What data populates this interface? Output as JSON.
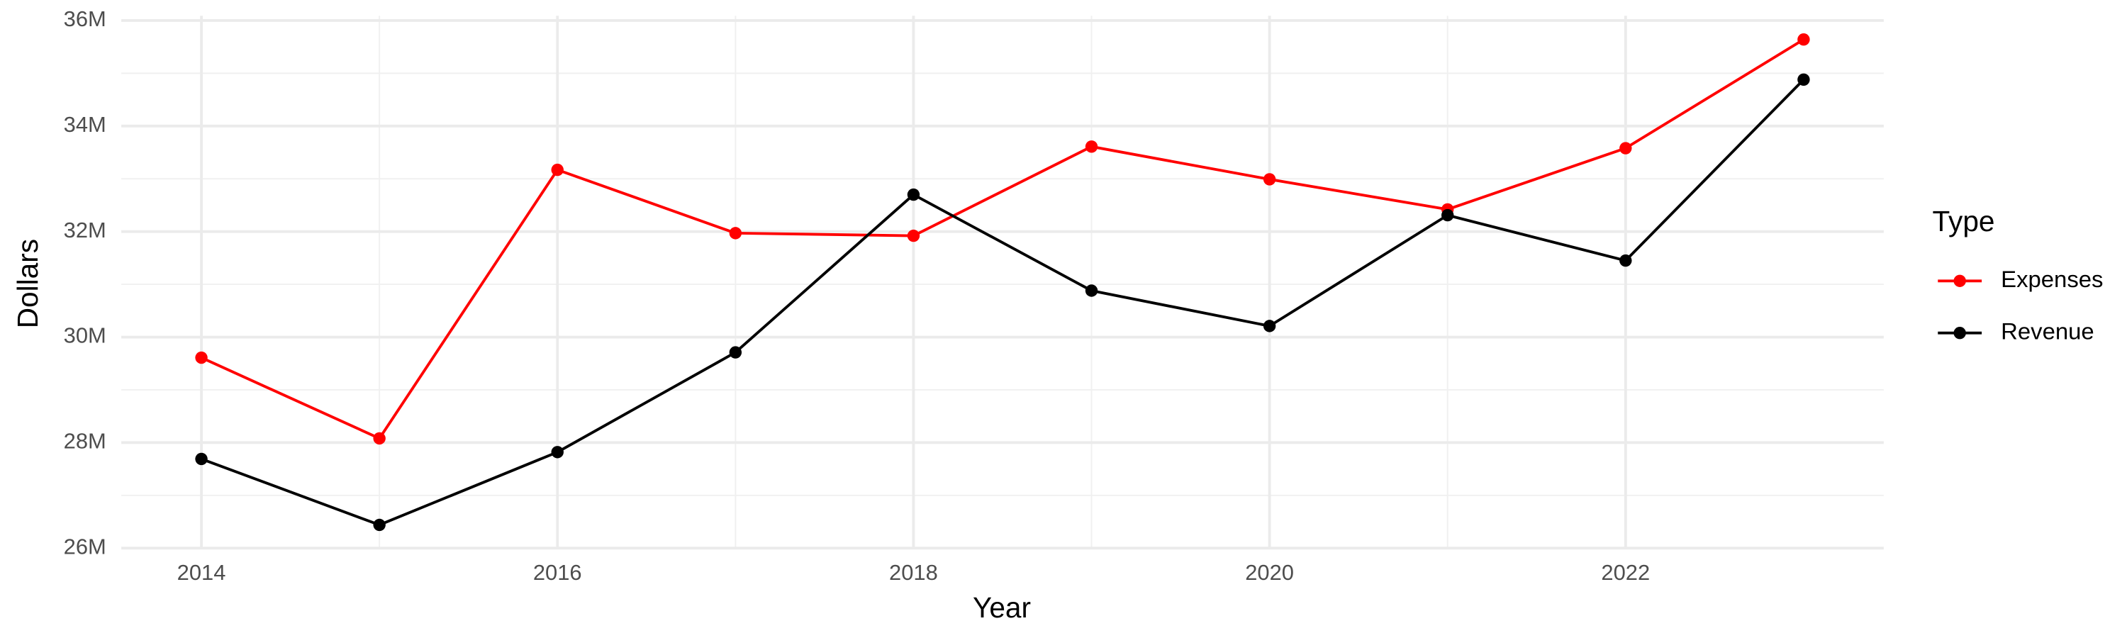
{
  "chart_data": {
    "type": "line",
    "x_label": "Year",
    "y_label": "Dollars",
    "legend_title": "Type",
    "legend_position": "right",
    "grid": true,
    "x": [
      2014,
      2015,
      2016,
      2017,
      2018,
      2019,
      2020,
      2021,
      2022,
      2023
    ],
    "series": [
      {
        "name": "Expenses",
        "color": "#ff0000",
        "values": [
          29610000,
          28080000,
          33170000,
          31970000,
          31920000,
          33610000,
          32990000,
          32420000,
          33580000,
          35640000
        ]
      },
      {
        "name": "Revenue",
        "color": "#000000",
        "values": [
          27690000,
          26440000,
          27820000,
          29710000,
          32700000,
          30880000,
          30210000,
          32310000,
          31450000,
          34880000
        ]
      }
    ],
    "xlim": [
      2013.55,
      2023.45
    ],
    "xticks": [
      2014,
      2016,
      2018,
      2020,
      2022
    ],
    "ylim": [
      25990000,
      36090000
    ],
    "yticks": [
      {
        "value": 26000000,
        "label": "26M"
      },
      {
        "value": 28000000,
        "label": "28M"
      },
      {
        "value": 30000000,
        "label": "30M"
      },
      {
        "value": 32000000,
        "label": "32M"
      },
      {
        "value": 34000000,
        "label": "34M"
      },
      {
        "value": 36000000,
        "label": "36M"
      }
    ]
  }
}
